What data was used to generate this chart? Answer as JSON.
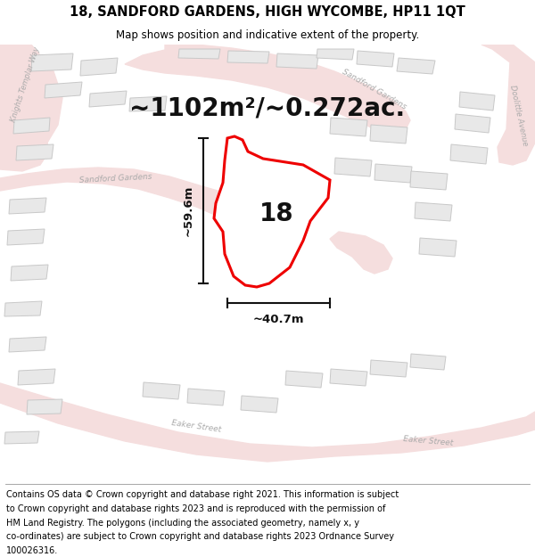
{
  "title": "18, SANDFORD GARDENS, HIGH WYCOMBE, HP11 1QT",
  "subtitle": "Map shows position and indicative extent of the property.",
  "area_label": "~1102m²/~0.272ac.",
  "property_number": "18",
  "width_label": "~40.7m",
  "height_label": "~59.6m",
  "footer_lines": [
    "Contains OS data © Crown copyright and database right 2021. This information is subject",
    "to Crown copyright and database rights 2023 and is reproduced with the permission of",
    "HM Land Registry. The polygons (including the associated geometry, namely x, y",
    "co-ordinates) are subject to Crown copyright and database rights 2023 Ordnance Survey",
    "100026316."
  ],
  "map_bg": "#ffffff",
  "road_line_color": "#e8a0a0",
  "building_face_color": "#e8e8e8",
  "building_edge_color": "#c8c8c8",
  "boundary_color": "#ee0000",
  "annotation_color": "#111111",
  "road_label_color": "#aaaaaa",
  "title_fontsize": 10.5,
  "subtitle_fontsize": 8.5,
  "area_fontsize": 20,
  "number_fontsize": 20,
  "dim_fontsize": 9.5,
  "footer_fontsize": 7.0,
  "road_lw": 1.2,
  "boundary_lw": 2.2
}
